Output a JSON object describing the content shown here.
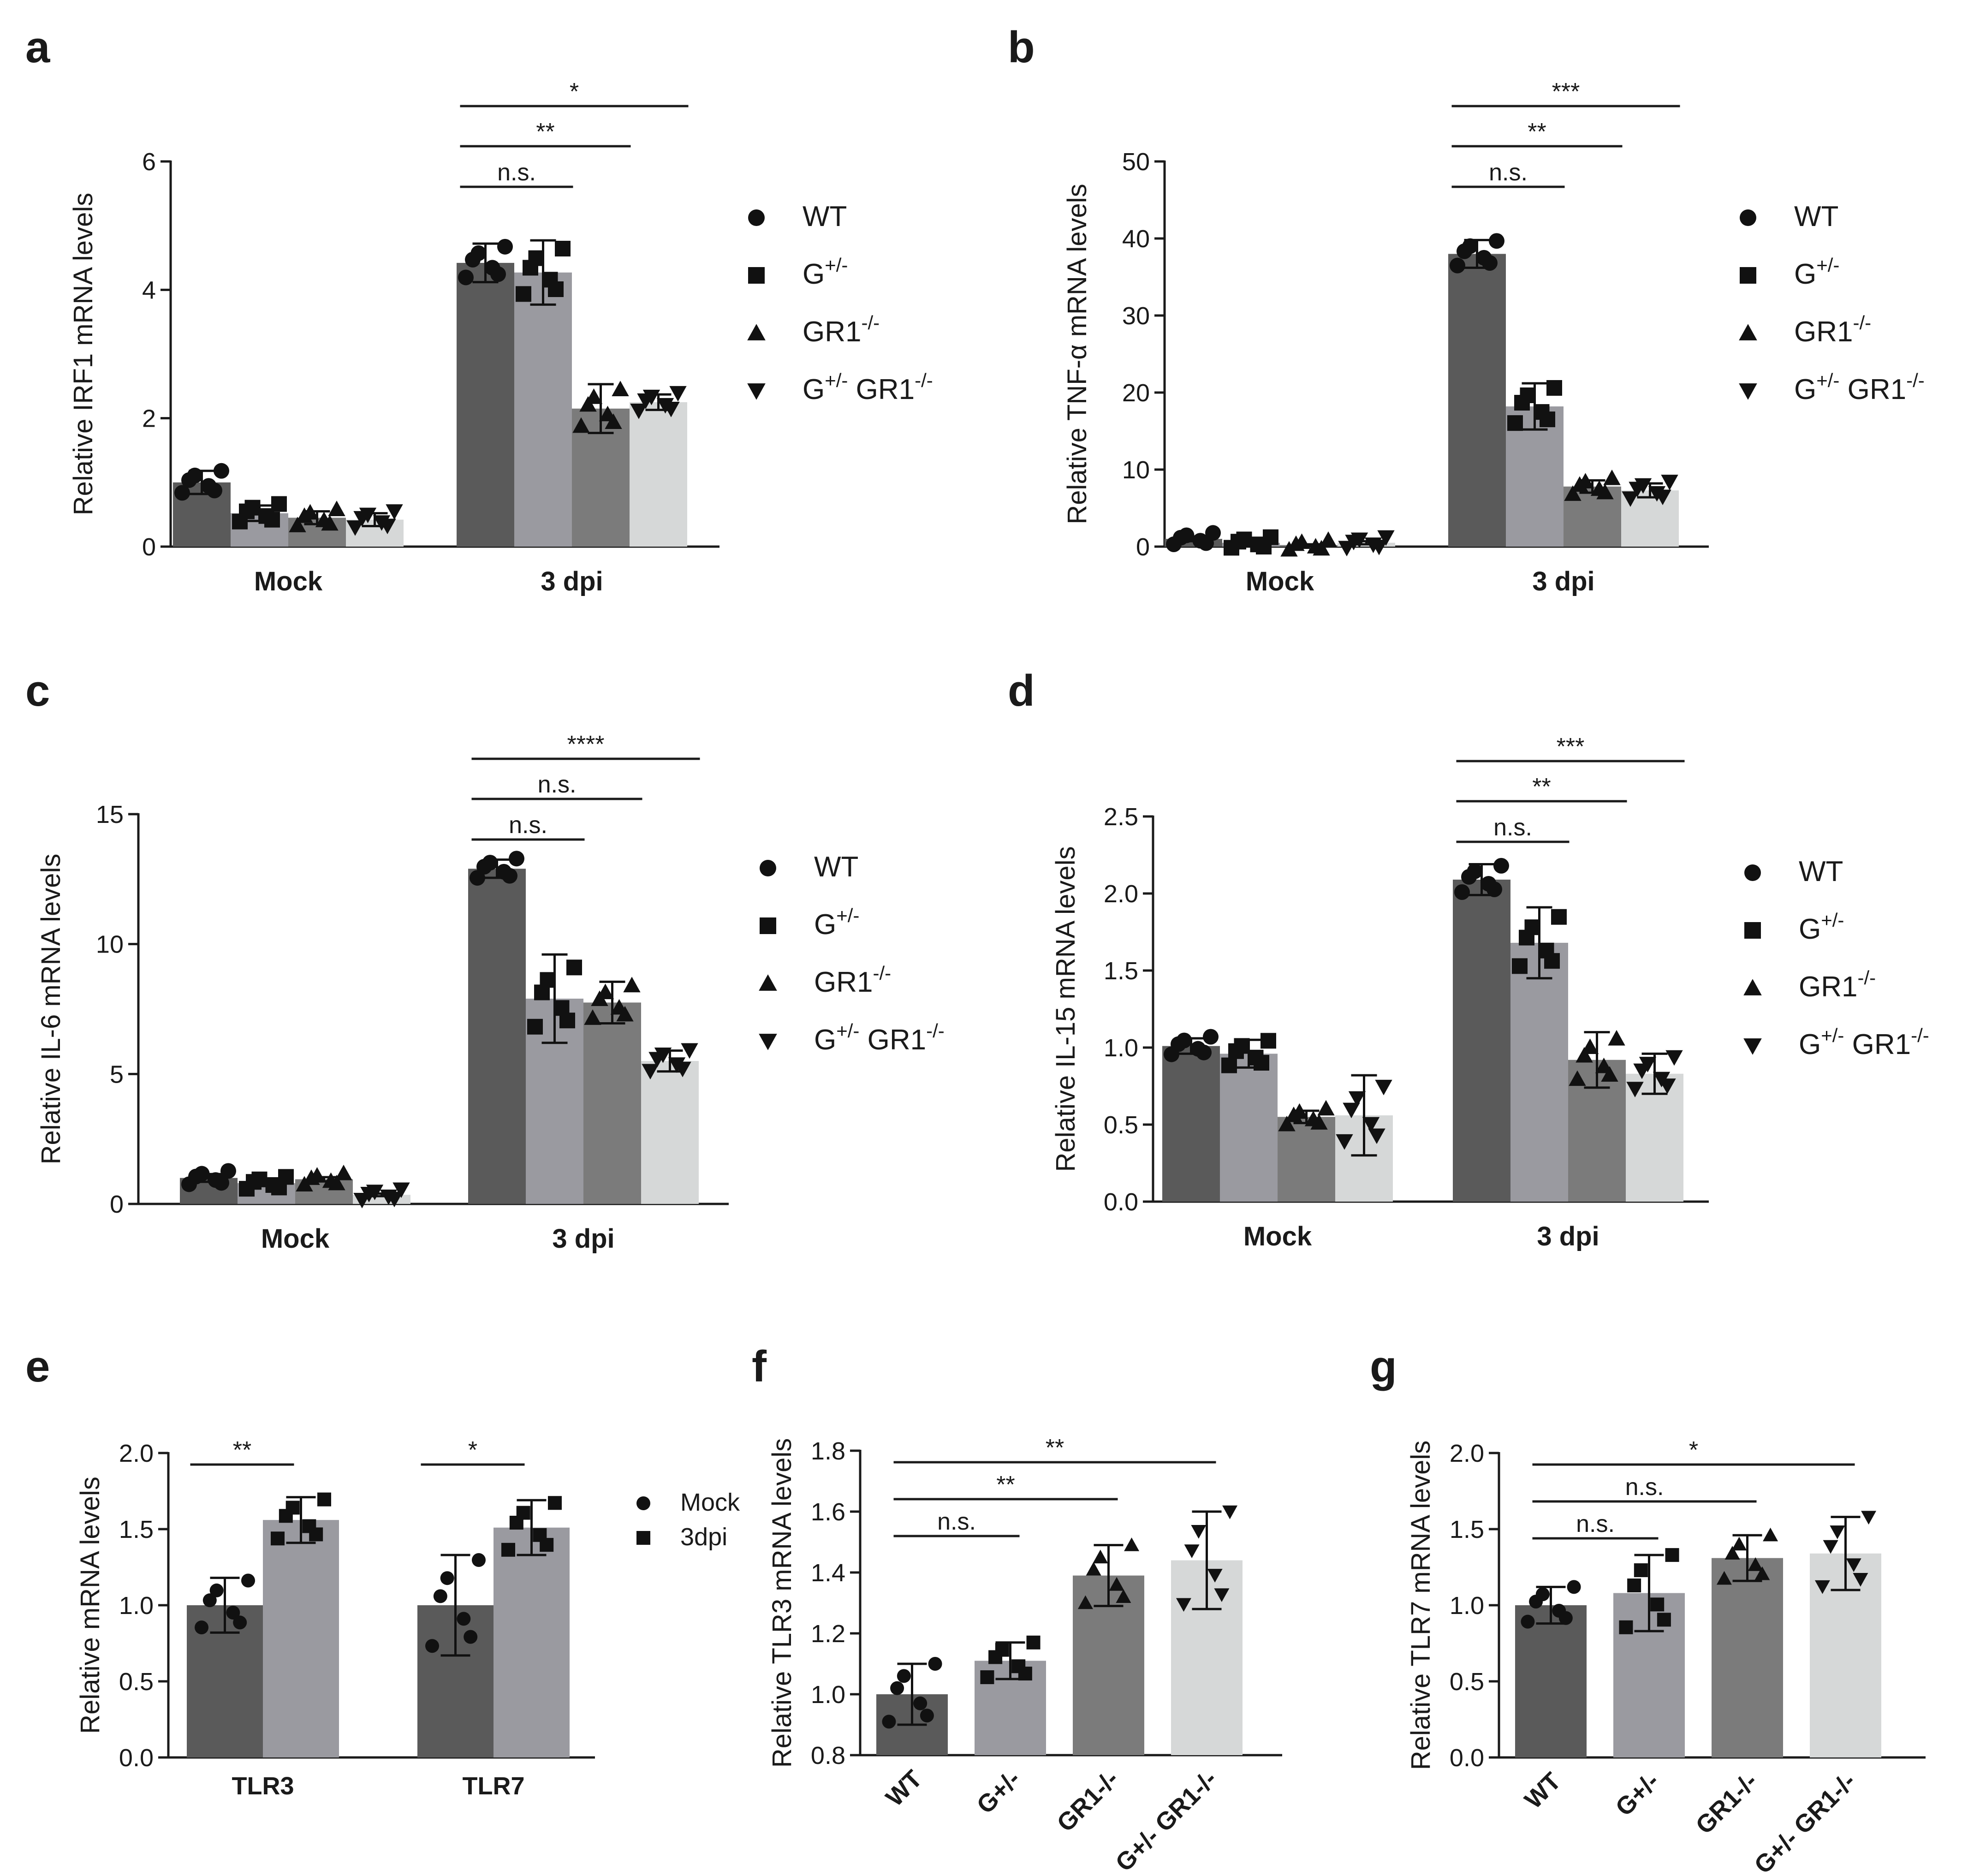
{
  "colors": {
    "wt": "#5a5a5a",
    "het": "#9a9aa0",
    "gr1": "#7b7b7b",
    "double": "#d6d8d8",
    "marker": "#111111"
  },
  "legend_four": [
    {
      "marker": "circle",
      "base": "WT",
      "sup": "",
      "tail": ""
    },
    {
      "marker": "square",
      "base": "G",
      "sup": "+/-",
      "tail": ""
    },
    {
      "marker": "triangle-up",
      "base": "GR1",
      "sup": "-/-",
      "tail": ""
    },
    {
      "marker": "triangle-down",
      "base": "G",
      "sup": "+/-",
      "tail": " GR1",
      "sup2": "-/-"
    }
  ],
  "legend_two": [
    {
      "marker": "circle",
      "label": "Mock"
    },
    {
      "marker": "square",
      "label": "3dpi"
    }
  ],
  "chart_data": [
    {
      "panel": "a",
      "type": "bar",
      "ylabel": "Relative IRF1 mRNA levels",
      "ylim": [
        0,
        6
      ],
      "yticks": [
        0,
        2,
        4,
        6
      ],
      "categories": [
        "Mock",
        "3 dpi"
      ],
      "series": [
        {
          "name": "WT",
          "values": [
            1.0,
            4.42
          ],
          "sd": [
            0.18,
            0.3
          ]
        },
        {
          "name": "G+/-",
          "values": [
            0.52,
            4.27
          ],
          "sd": [
            0.12,
            0.5
          ]
        },
        {
          "name": "GR1-/-",
          "values": [
            0.45,
            2.15
          ],
          "sd": [
            0.1,
            0.38
          ]
        },
        {
          "name": "G+/- GR1-/-",
          "values": [
            0.42,
            2.25
          ],
          "sd": [
            0.1,
            0.12
          ]
        }
      ],
      "significance": [
        {
          "group": 1,
          "from": 0,
          "to": 1,
          "label": "n.s."
        },
        {
          "group": 1,
          "from": 0,
          "to": 2,
          "label": "**"
        },
        {
          "group": 1,
          "from": 0,
          "to": 3,
          "label": "*"
        }
      ]
    },
    {
      "panel": "b",
      "type": "bar",
      "ylabel": "Relative TNF-α mRNA levels",
      "ylim": [
        0,
        50
      ],
      "yticks": [
        0,
        10,
        20,
        30,
        40,
        50
      ],
      "categories": [
        "Mock",
        "3 dpi"
      ],
      "series": [
        {
          "name": "WT",
          "values": [
            1.0,
            38.0
          ],
          "sd": [
            0.3,
            1.8
          ]
        },
        {
          "name": "G+/-",
          "values": [
            0.5,
            18.2
          ],
          "sd": [
            0.2,
            3.0
          ]
        },
        {
          "name": "GR1-/-",
          "values": [
            0.2,
            7.8
          ],
          "sd": [
            0.1,
            0.8
          ]
        },
        {
          "name": "G+/- GR1-/-",
          "values": [
            0.5,
            7.3
          ],
          "sd": [
            0.2,
            0.9
          ]
        }
      ],
      "significance": [
        {
          "group": 1,
          "from": 0,
          "to": 1,
          "label": "n.s."
        },
        {
          "group": 1,
          "from": 0,
          "to": 2,
          "label": "**"
        },
        {
          "group": 1,
          "from": 0,
          "to": 3,
          "label": "***"
        }
      ]
    },
    {
      "panel": "c",
      "type": "bar",
      "ylabel": "Relative IL-6 mRNA levels",
      "ylim": [
        0,
        15
      ],
      "yticks": [
        0,
        5,
        10,
        15
      ],
      "categories": [
        "Mock",
        "3 dpi"
      ],
      "series": [
        {
          "name": "WT",
          "values": [
            1.0,
            12.9
          ],
          "sd": [
            0.15,
            0.35
          ]
        },
        {
          "name": "G+/-",
          "values": [
            0.8,
            7.9
          ],
          "sd": [
            0.1,
            1.7
          ]
        },
        {
          "name": "GR1-/-",
          "values": [
            0.95,
            7.75
          ],
          "sd": [
            0.08,
            0.8
          ]
        },
        {
          "name": "G+/- GR1-/-",
          "values": [
            0.35,
            5.5
          ],
          "sd": [
            0.05,
            0.4
          ]
        }
      ],
      "significance": [
        {
          "group": 1,
          "from": 0,
          "to": 1,
          "label": "n.s."
        },
        {
          "group": 1,
          "from": 0,
          "to": 2,
          "label": "n.s."
        },
        {
          "group": 1,
          "from": 0,
          "to": 3,
          "label": "****"
        }
      ]
    },
    {
      "panel": "d",
      "type": "bar",
      "ylabel": "Relative IL-15 mRNA levels",
      "ylim": [
        0,
        2.5
      ],
      "yticks": [
        0.0,
        0.5,
        1.0,
        1.5,
        2.0,
        2.5
      ],
      "decimals": 1,
      "categories": [
        "Mock",
        "3 dpi"
      ],
      "series": [
        {
          "name": "WT",
          "values": [
            1.01,
            2.09
          ],
          "sd": [
            0.05,
            0.1
          ]
        },
        {
          "name": "G+/-",
          "values": [
            0.96,
            1.68
          ],
          "sd": [
            0.09,
            0.23
          ]
        },
        {
          "name": "GR1-/-",
          "values": [
            0.55,
            0.92
          ],
          "sd": [
            0.04,
            0.18
          ]
        },
        {
          "name": "G+/- GR1-/-",
          "values": [
            0.56,
            0.83
          ],
          "sd": [
            0.26,
            0.13
          ]
        }
      ],
      "significance": [
        {
          "group": 1,
          "from": 0,
          "to": 1,
          "label": "n.s."
        },
        {
          "group": 1,
          "from": 0,
          "to": 2,
          "label": "**"
        },
        {
          "group": 1,
          "from": 0,
          "to": 3,
          "label": "***"
        }
      ]
    },
    {
      "panel": "e",
      "type": "bar",
      "ylabel": "Relative mRNA levels",
      "ylim": [
        0,
        2.0
      ],
      "yticks": [
        0.0,
        0.5,
        1.0,
        1.5,
        2.0
      ],
      "decimals": 1,
      "categories": [
        "TLR3",
        "TLR7"
      ],
      "series": [
        {
          "name": "Mock",
          "values": [
            1.0,
            1.0
          ],
          "sd": [
            0.18,
            0.33
          ]
        },
        {
          "name": "3dpi",
          "values": [
            1.56,
            1.51
          ],
          "sd": [
            0.15,
            0.18
          ]
        }
      ],
      "significance": [
        {
          "group": 0,
          "from": 0,
          "to": 1,
          "label": "**"
        },
        {
          "group": 1,
          "from": 0,
          "to": 1,
          "label": "*"
        }
      ]
    },
    {
      "panel": "f",
      "type": "bar",
      "ylabel": "Relative TLR3 mRNA levels",
      "ylim": [
        0.8,
        1.8
      ],
      "yticks": [
        0.8,
        1.0,
        1.2,
        1.4,
        1.6,
        1.8
      ],
      "decimals": 1,
      "categories": [
        "WT",
        "G+/-",
        "GR1-/-",
        "G+/- GR1-/-"
      ],
      "values": [
        1.0,
        1.11,
        1.39,
        1.44
      ],
      "sd": [
        0.1,
        0.06,
        0.1,
        0.16
      ],
      "significance": [
        {
          "from": 0,
          "to": 1,
          "label": "n.s."
        },
        {
          "from": 0,
          "to": 2,
          "label": "**"
        },
        {
          "from": 0,
          "to": 3,
          "label": "**"
        }
      ]
    },
    {
      "panel": "g",
      "type": "bar",
      "ylabel": "Relative TLR7 mRNA levels",
      "ylim": [
        0,
        2.0
      ],
      "yticks": [
        0.0,
        0.5,
        1.0,
        1.5,
        2.0
      ],
      "decimals": 1,
      "categories": [
        "WT",
        "G+/-",
        "GR1-/-",
        "G+/- GR1-/-"
      ],
      "values": [
        1.0,
        1.08,
        1.31,
        1.34
      ],
      "sd": [
        0.12,
        0.25,
        0.15,
        0.24
      ],
      "significance": [
        {
          "from": 0,
          "to": 1,
          "label": "n.s."
        },
        {
          "from": 0,
          "to": 2,
          "label": "n.s."
        },
        {
          "from": 0,
          "to": 3,
          "label": "*"
        }
      ]
    }
  ]
}
